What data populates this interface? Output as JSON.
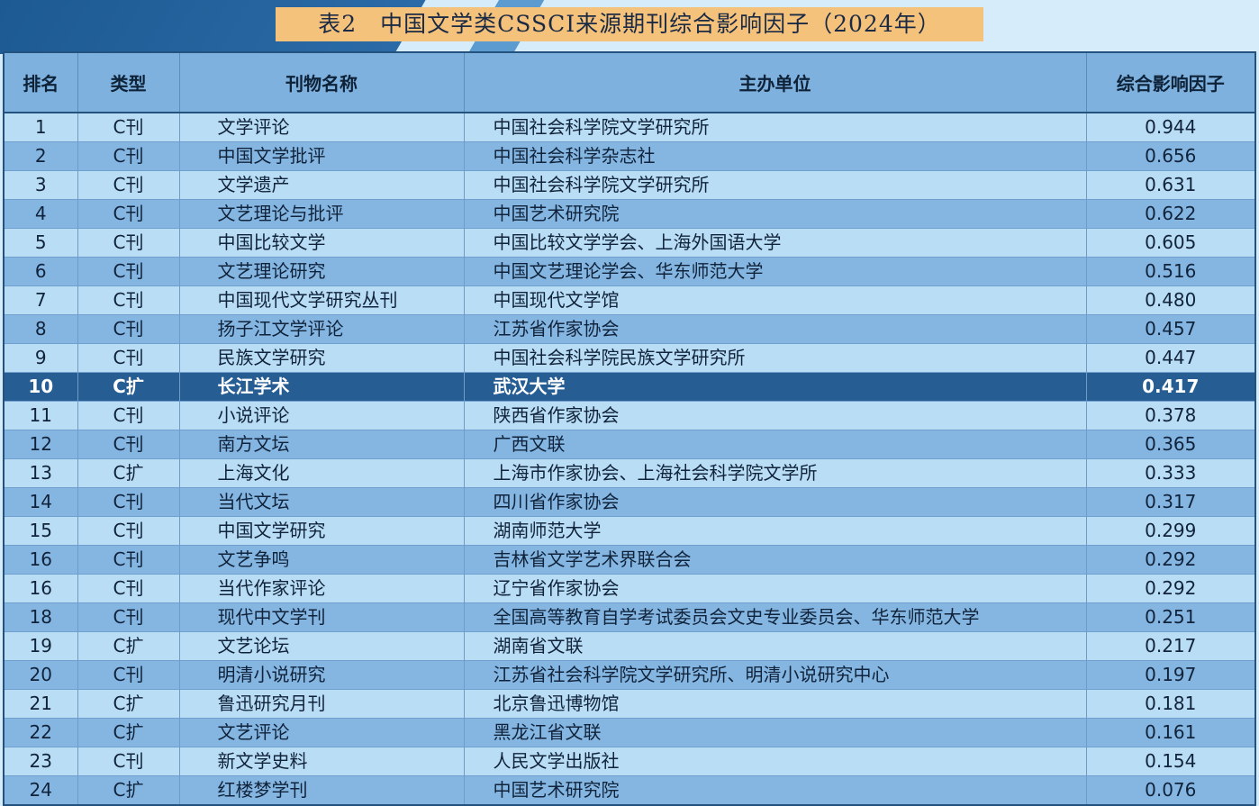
{
  "title": "表2　中国文学类CSSCI来源期刊综合影响因子（2024年）",
  "colors": {
    "title_bg": "#f5c27c",
    "header_bg": "#7fb1df",
    "row_light": "#b9ddf5",
    "row_dark": "#85b6e2",
    "highlight": "#265e94"
  },
  "headers": [
    "排名",
    "类型",
    "刊物名称",
    "主办单位",
    "综合影响因子"
  ],
  "highlight_rank": "10",
  "rows": [
    [
      "1",
      "C刊",
      "文学评论",
      "中国社会科学院文学研究所",
      "0.944"
    ],
    [
      "2",
      "C刊",
      "中国文学批评",
      "中国社会科学杂志社",
      "0.656"
    ],
    [
      "3",
      "C刊",
      "文学遗产",
      "中国社会科学院文学研究所",
      "0.631"
    ],
    [
      "4",
      "C刊",
      "文艺理论与批评",
      "中国艺术研究院",
      "0.622"
    ],
    [
      "5",
      "C刊",
      "中国比较文学",
      "中国比较文学学会、上海外国语大学",
      "0.605"
    ],
    [
      "6",
      "C刊",
      "文艺理论研究",
      "中国文艺理论学会、华东师范大学",
      "0.516"
    ],
    [
      "7",
      "C刊",
      "中国现代文学研究丛刊",
      "中国现代文学馆",
      "0.480"
    ],
    [
      "8",
      "C刊",
      "扬子江文学评论",
      "江苏省作家协会",
      "0.457"
    ],
    [
      "9",
      "C刊",
      "民族文学研究",
      "中国社会科学院民族文学研究所",
      "0.447"
    ],
    [
      "10",
      "C扩",
      "长江学术",
      "武汉大学",
      "0.417"
    ],
    [
      "11",
      "C刊",
      "小说评论",
      "陕西省作家协会",
      "0.378"
    ],
    [
      "12",
      "C刊",
      "南方文坛",
      "广西文联",
      "0.365"
    ],
    [
      "13",
      "C扩",
      "上海文化",
      "上海市作家协会、上海社会科学院文学所",
      "0.333"
    ],
    [
      "14",
      "C刊",
      "当代文坛",
      "四川省作家协会",
      "0.317"
    ],
    [
      "15",
      "C刊",
      "中国文学研究",
      "湖南师范大学",
      "0.299"
    ],
    [
      "16",
      "C刊",
      "文艺争鸣",
      "吉林省文学艺术界联合会",
      "0.292"
    ],
    [
      "16",
      "C刊",
      "当代作家评论",
      "辽宁省作家协会",
      "0.292"
    ],
    [
      "18",
      "C刊",
      "现代中文学刊",
      "全国高等教育自学考试委员会文史专业委员会、华东师范大学",
      "0.251"
    ],
    [
      "19",
      "C扩",
      "文艺论坛",
      "湖南省文联",
      "0.217"
    ],
    [
      "20",
      "C刊",
      "明清小说研究",
      "江苏省社会科学院文学研究所、明清小说研究中心",
      "0.197"
    ],
    [
      "21",
      "C扩",
      "鲁迅研究月刊",
      "北京鲁迅博物馆",
      "0.181"
    ],
    [
      "22",
      "C扩",
      "文艺评论",
      "黑龙江省文联",
      "0.161"
    ],
    [
      "23",
      "C刊",
      "新文学史料",
      "人民文学出版社",
      "0.154"
    ],
    [
      "24",
      "C扩",
      "红楼梦学刊",
      "中国艺术研究院",
      "0.076"
    ]
  ]
}
